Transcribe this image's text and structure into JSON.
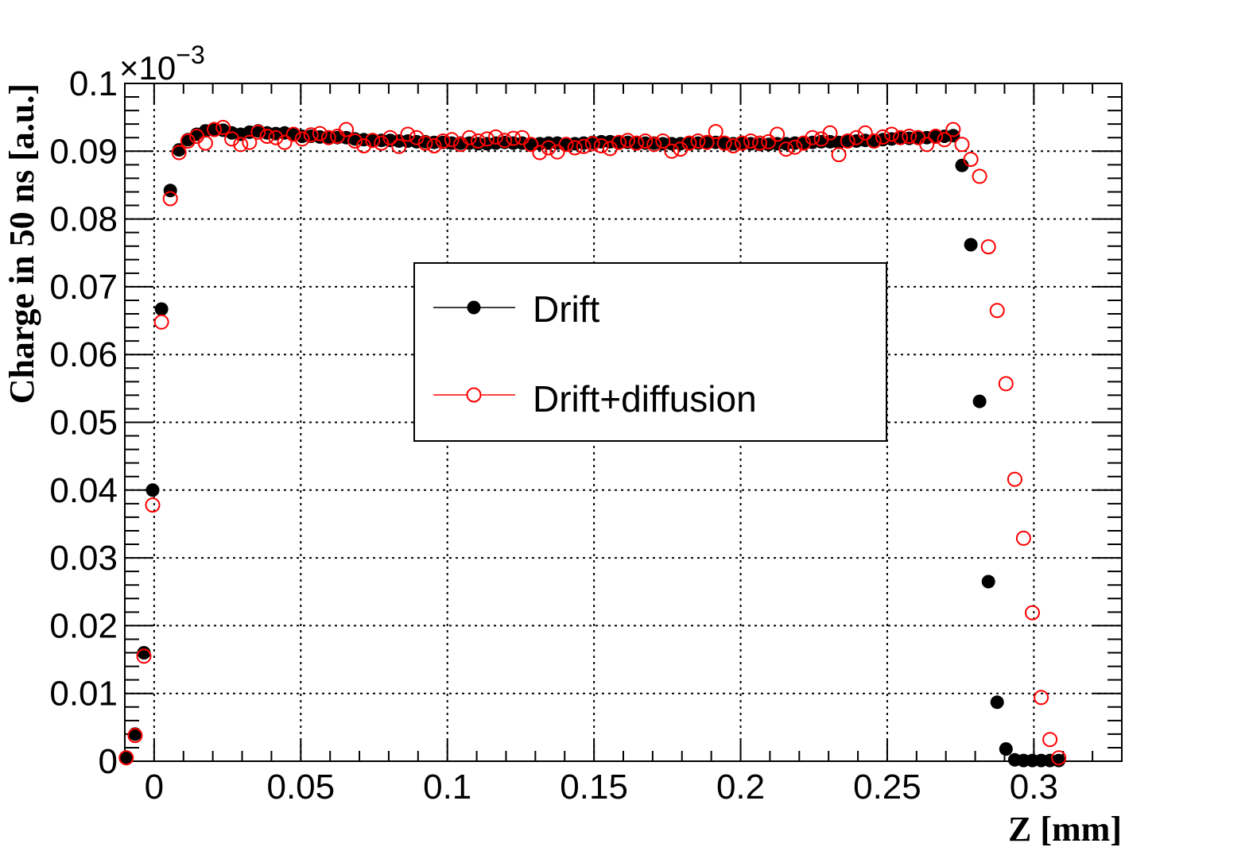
{
  "chart_data": {
    "type": "scatter",
    "title": "",
    "xlabel": "Z [mm]",
    "ylabel": "Charge in 50 ns [a.u.]",
    "y_multiplier_label": "×10",
    "y_multiplier_exponent": "−3",
    "xlim": [
      -0.01,
      0.33
    ],
    "ylim": [
      0,
      0.1
    ],
    "grid": true,
    "legend_position": "center",
    "x_ticks": [
      "0",
      "0.05",
      "0.1",
      "0.15",
      "0.2",
      "0.25",
      "0.3"
    ],
    "x_tick_values": [
      0,
      0.05,
      0.1,
      0.15,
      0.2,
      0.25,
      0.3
    ],
    "y_ticks": [
      "0",
      "0.01",
      "0.02",
      "0.03",
      "0.04",
      "0.05",
      "0.06",
      "0.07",
      "0.08",
      "0.09",
      "0.1"
    ],
    "y_tick_values": [
      0,
      0.01,
      0.02,
      0.03,
      0.04,
      0.05,
      0.06,
      0.07,
      0.08,
      0.09,
      0.1
    ],
    "series": [
      {
        "name": "Drift",
        "color": "#000000",
        "marker": "filled-circle",
        "points": [
          [
            -0.0095,
            0.0005
          ],
          [
            -0.0065,
            0.004
          ],
          [
            -0.0035,
            0.016
          ],
          [
            -0.0005,
            0.04
          ],
          [
            0.0025,
            0.0667
          ],
          [
            0.0055,
            0.0842
          ],
          [
            0.0085,
            0.0902
          ],
          [
            0.0115,
            0.0917
          ],
          [
            0.0145,
            0.0925
          ],
          [
            0.0175,
            0.093
          ],
          [
            0.0205,
            0.0933
          ],
          [
            0.0235,
            0.0931
          ],
          [
            0.0265,
            0.0927
          ],
          [
            0.0295,
            0.0925
          ],
          [
            0.0325,
            0.0928
          ],
          [
            0.0355,
            0.093
          ],
          [
            0.0385,
            0.0927
          ],
          [
            0.0415,
            0.0926
          ],
          [
            0.0445,
            0.0927
          ],
          [
            0.0475,
            0.0924
          ],
          [
            0.0505,
            0.0922
          ],
          [
            0.0535,
            0.0922
          ],
          [
            0.0565,
            0.0921
          ],
          [
            0.0595,
            0.0921
          ],
          [
            0.0625,
            0.092
          ],
          [
            0.0655,
            0.092
          ],
          [
            0.0685,
            0.0918
          ],
          [
            0.0715,
            0.0917
          ],
          [
            0.0745,
            0.0917
          ],
          [
            0.0775,
            0.0916
          ],
          [
            0.0805,
            0.0916
          ],
          [
            0.0835,
            0.0915
          ],
          [
            0.0865,
            0.0915
          ],
          [
            0.0895,
            0.0914
          ],
          [
            0.0925,
            0.0914
          ],
          [
            0.0955,
            0.0913
          ],
          [
            0.0985,
            0.0913
          ],
          [
            0.1015,
            0.0912
          ],
          [
            0.1045,
            0.0912
          ],
          [
            0.1075,
            0.0912
          ],
          [
            0.1105,
            0.0911
          ],
          [
            0.1135,
            0.0911
          ],
          [
            0.1165,
            0.0912
          ],
          [
            0.1195,
            0.0913
          ],
          [
            0.1225,
            0.0912
          ],
          [
            0.1255,
            0.0912
          ],
          [
            0.1285,
            0.0911
          ],
          [
            0.1315,
            0.0911
          ],
          [
            0.1345,
            0.0912
          ],
          [
            0.1375,
            0.0912
          ],
          [
            0.1405,
            0.0911
          ],
          [
            0.1435,
            0.0911
          ],
          [
            0.1465,
            0.0912
          ],
          [
            0.1495,
            0.0913
          ],
          [
            0.1525,
            0.0914
          ],
          [
            0.1555,
            0.0914
          ],
          [
            0.1585,
            0.0913
          ],
          [
            0.1615,
            0.0913
          ],
          [
            0.1645,
            0.0912
          ],
          [
            0.1675,
            0.0912
          ],
          [
            0.1705,
            0.0912
          ],
          [
            0.1735,
            0.0911
          ],
          [
            0.1765,
            0.0911
          ],
          [
            0.1795,
            0.0911
          ],
          [
            0.1825,
            0.0911
          ],
          [
            0.1855,
            0.0912
          ],
          [
            0.1885,
            0.0912
          ],
          [
            0.1915,
            0.0913
          ],
          [
            0.1945,
            0.0912
          ],
          [
            0.1975,
            0.0911
          ],
          [
            0.2005,
            0.0911
          ],
          [
            0.2035,
            0.0911
          ],
          [
            0.2065,
            0.091
          ],
          [
            0.2095,
            0.091
          ],
          [
            0.2125,
            0.0911
          ],
          [
            0.2155,
            0.0911
          ],
          [
            0.2185,
            0.0912
          ],
          [
            0.2215,
            0.0912
          ],
          [
            0.2245,
            0.0913
          ],
          [
            0.2275,
            0.0914
          ],
          [
            0.2305,
            0.0914
          ],
          [
            0.2335,
            0.0913
          ],
          [
            0.2365,
            0.0914
          ],
          [
            0.2395,
            0.0915
          ],
          [
            0.2425,
            0.0916
          ],
          [
            0.2455,
            0.0916
          ],
          [
            0.2485,
            0.0917
          ],
          [
            0.2515,
            0.0918
          ],
          [
            0.2545,
            0.0919
          ],
          [
            0.2575,
            0.0919
          ],
          [
            0.2605,
            0.0919
          ],
          [
            0.2635,
            0.092
          ],
          [
            0.2665,
            0.0921
          ],
          [
            0.2695,
            0.0922
          ],
          [
            0.2725,
            0.0923
          ],
          [
            0.2755,
            0.0879
          ],
          [
            0.2785,
            0.0762
          ],
          [
            0.2815,
            0.0531
          ],
          [
            0.2845,
            0.0265
          ],
          [
            0.2875,
            0.0087
          ],
          [
            0.2905,
            0.0018
          ],
          [
            0.2935,
            0.0002
          ],
          [
            0.2965,
            0.0001
          ],
          [
            0.2995,
            0.0001
          ],
          [
            0.3025,
            0.0001
          ],
          [
            0.3055,
            0.0001
          ],
          [
            0.3085,
            0.0001
          ]
        ]
      },
      {
        "name": "Drift+diffusion",
        "color": "#ff0000",
        "marker": "open-circle",
        "points": [
          [
            -0.0095,
            0.0005
          ],
          [
            -0.0065,
            0.0038
          ],
          [
            -0.0035,
            0.0155
          ],
          [
            -0.0005,
            0.0378
          ],
          [
            0.0025,
            0.0648
          ],
          [
            0.0055,
            0.083
          ],
          [
            0.0085,
            0.0898
          ],
          [
            0.0115,
            0.0915
          ],
          [
            0.0145,
            0.0922
          ],
          [
            0.0175,
            0.0912
          ],
          [
            0.0205,
            0.0932
          ],
          [
            0.0235,
            0.0935
          ],
          [
            0.0265,
            0.0918
          ],
          [
            0.0295,
            0.091
          ],
          [
            0.0325,
            0.0913
          ],
          [
            0.0355,
            0.0928
          ],
          [
            0.0385,
            0.0922
          ],
          [
            0.0415,
            0.092
          ],
          [
            0.0445,
            0.0913
          ],
          [
            0.0475,
            0.0925
          ],
          [
            0.0505,
            0.0918
          ],
          [
            0.0535,
            0.0924
          ],
          [
            0.0565,
            0.0926
          ],
          [
            0.0595,
            0.092
          ],
          [
            0.0625,
            0.0922
          ],
          [
            0.0655,
            0.0932
          ],
          [
            0.0685,
            0.0915
          ],
          [
            0.0715,
            0.0908
          ],
          [
            0.0745,
            0.0916
          ],
          [
            0.0775,
            0.0912
          ],
          [
            0.0805,
            0.092
          ],
          [
            0.0835,
            0.0907
          ],
          [
            0.0865,
            0.0925
          ],
          [
            0.0895,
            0.092
          ],
          [
            0.0925,
            0.0912
          ],
          [
            0.0955,
            0.0908
          ],
          [
            0.0985,
            0.0915
          ],
          [
            0.1015,
            0.0917
          ],
          [
            0.1045,
            0.091
          ],
          [
            0.1075,
            0.092
          ],
          [
            0.1105,
            0.0915
          ],
          [
            0.1135,
            0.0918
          ],
          [
            0.1165,
            0.0921
          ],
          [
            0.1195,
            0.0916
          ],
          [
            0.1225,
            0.0919
          ],
          [
            0.1255,
            0.092
          ],
          [
            0.1285,
            0.091
          ],
          [
            0.1315,
            0.0898
          ],
          [
            0.1345,
            0.0905
          ],
          [
            0.1375,
            0.0899
          ],
          [
            0.1405,
            0.091
          ],
          [
            0.1435,
            0.0905
          ],
          [
            0.1465,
            0.0907
          ],
          [
            0.1495,
            0.0911
          ],
          [
            0.1525,
            0.0908
          ],
          [
            0.1555,
            0.0904
          ],
          [
            0.1585,
            0.0913
          ],
          [
            0.1615,
            0.0916
          ],
          [
            0.1645,
            0.0912
          ],
          [
            0.1675,
            0.0915
          ],
          [
            0.1705,
            0.091
          ],
          [
            0.1735,
            0.0915
          ],
          [
            0.1765,
            0.09
          ],
          [
            0.1795,
            0.0903
          ],
          [
            0.1825,
            0.0912
          ],
          [
            0.1855,
            0.0915
          ],
          [
            0.1885,
            0.0913
          ],
          [
            0.1915,
            0.0929
          ],
          [
            0.1945,
            0.0912
          ],
          [
            0.1975,
            0.0908
          ],
          [
            0.2005,
            0.0912
          ],
          [
            0.2035,
            0.0915
          ],
          [
            0.2065,
            0.0912
          ],
          [
            0.2095,
            0.0914
          ],
          [
            0.2125,
            0.0925
          ],
          [
            0.2155,
            0.0903
          ],
          [
            0.2185,
            0.0906
          ],
          [
            0.2215,
            0.0912
          ],
          [
            0.2245,
            0.092
          ],
          [
            0.2275,
            0.0918
          ],
          [
            0.2305,
            0.0927
          ],
          [
            0.2335,
            0.0895
          ],
          [
            0.2365,
            0.0915
          ],
          [
            0.2395,
            0.092
          ],
          [
            0.2425,
            0.0927
          ],
          [
            0.2455,
            0.0915
          ],
          [
            0.2485,
            0.0921
          ],
          [
            0.2515,
            0.0925
          ],
          [
            0.2545,
            0.092
          ],
          [
            0.2575,
            0.0922
          ],
          [
            0.2605,
            0.092
          ],
          [
            0.2635,
            0.091
          ],
          [
            0.2665,
            0.0922
          ],
          [
            0.2695,
            0.0917
          ],
          [
            0.2725,
            0.0932
          ],
          [
            0.2755,
            0.091
          ],
          [
            0.2785,
            0.0888
          ],
          [
            0.2815,
            0.0863
          ],
          [
            0.2845,
            0.0759
          ],
          [
            0.2875,
            0.0665
          ],
          [
            0.2905,
            0.0557
          ],
          [
            0.2935,
            0.0416
          ],
          [
            0.2965,
            0.0329
          ],
          [
            0.2995,
            0.0219
          ],
          [
            0.3025,
            0.0094
          ],
          [
            0.3055,
            0.0032
          ],
          [
            0.3085,
            0.0005
          ]
        ]
      }
    ]
  }
}
